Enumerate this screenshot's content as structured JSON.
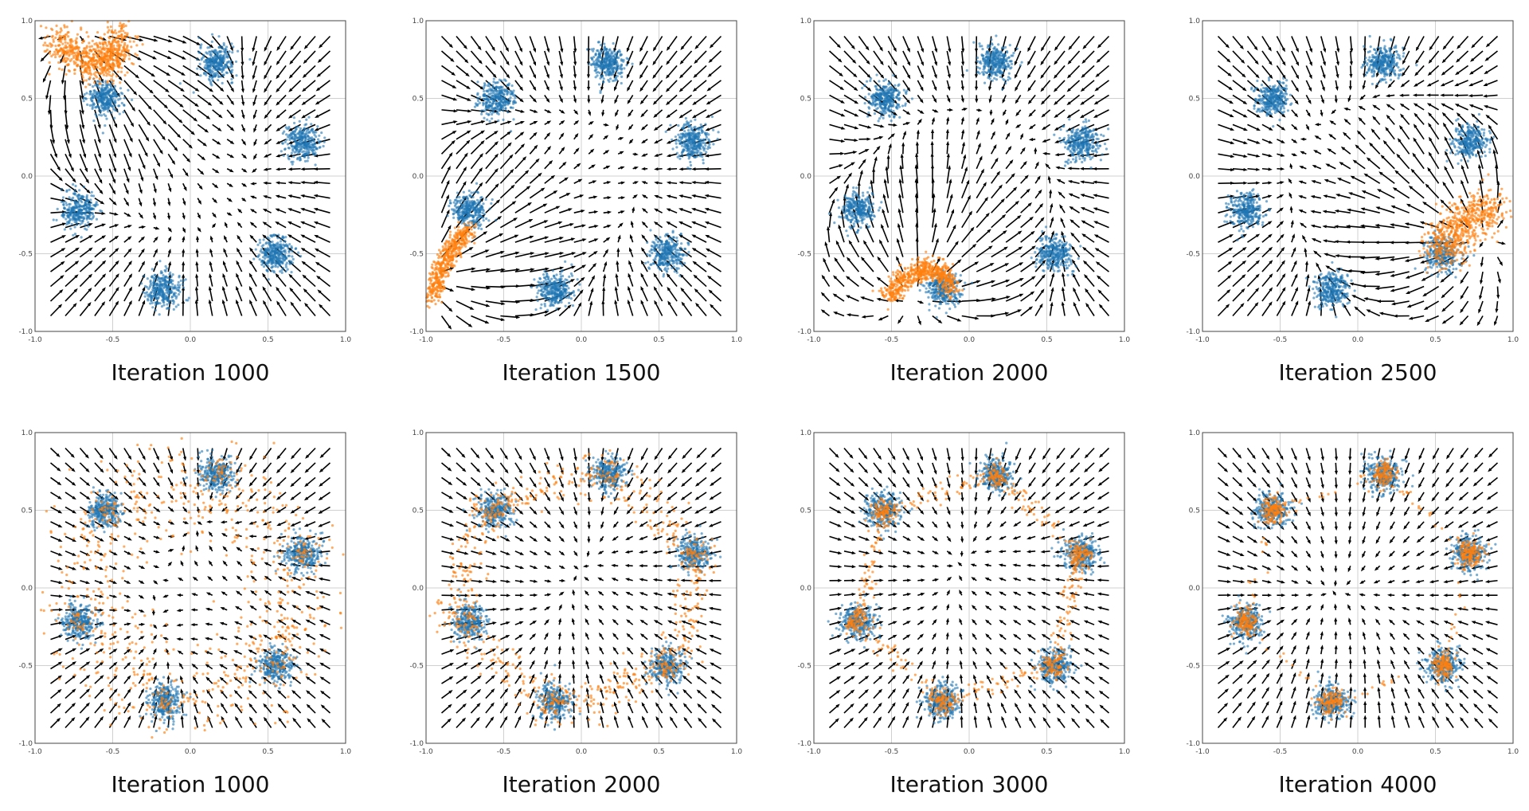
{
  "chart_data": [
    {
      "type": "scatter",
      "title": "Iteration 1000",
      "xlim": [
        -1,
        1
      ],
      "ylim": [
        -1,
        1
      ],
      "ticks": [
        "-1.0",
        "-0.5",
        "0.0",
        "0.5",
        "1.0"
      ],
      "grid": true,
      "gen": {
        "path": [
          [
            -0.88,
            0.9
          ],
          [
            -0.78,
            0.8
          ],
          [
            -0.65,
            0.72
          ],
          [
            -0.55,
            0.72
          ],
          [
            -0.48,
            0.8
          ],
          [
            -0.46,
            0.9
          ]
        ],
        "closed": false,
        "spread": 0.06,
        "n": 700,
        "cluster_frac": 0
      }
    },
    {
      "type": "scatter",
      "title": "Iteration 1500",
      "xlim": [
        -1,
        1
      ],
      "ylim": [
        -1,
        1
      ],
      "ticks": [
        "-1.0",
        "-0.5",
        "0.0",
        "0.5",
        "1.0"
      ],
      "grid": true,
      "gen": {
        "path": [
          [
            -0.97,
            -0.8
          ],
          [
            -0.9,
            -0.6
          ],
          [
            -0.82,
            -0.45
          ],
          [
            -0.72,
            -0.34
          ]
        ],
        "closed": false,
        "spread": 0.03,
        "n": 500,
        "cluster_frac": 0
      }
    },
    {
      "type": "scatter",
      "title": "Iteration 2000",
      "xlim": [
        -1,
        1
      ],
      "ylim": [
        -1,
        1
      ],
      "ticks": [
        "-1.0",
        "-0.5",
        "0.0",
        "0.5",
        "1.0"
      ],
      "grid": true,
      "gen": {
        "path": [
          [
            -0.52,
            -0.78
          ],
          [
            -0.42,
            -0.66
          ],
          [
            -0.3,
            -0.6
          ],
          [
            -0.18,
            -0.62
          ],
          [
            -0.1,
            -0.72
          ]
        ],
        "closed": false,
        "spread": 0.035,
        "n": 600,
        "cluster_frac": 0
      }
    },
    {
      "type": "scatter",
      "title": "Iteration 2500",
      "xlim": [
        -1,
        1
      ],
      "ylim": [
        -1,
        1
      ],
      "ticks": [
        "-1.0",
        "-0.5",
        "0.0",
        "0.5",
        "1.0"
      ],
      "grid": true,
      "gen": {
        "path": [
          [
            0.52,
            -0.52
          ],
          [
            0.6,
            -0.38
          ],
          [
            0.72,
            -0.27
          ],
          [
            0.88,
            -0.18
          ]
        ],
        "closed": false,
        "spread": 0.07,
        "n": 600,
        "cluster_frac": 0
      }
    },
    {
      "type": "scatter",
      "title": "Iteration 1000",
      "xlim": [
        -1,
        1
      ],
      "ylim": [
        -1,
        1
      ],
      "ticks": [
        "-1.0",
        "-0.5",
        "0.0",
        "0.5",
        "1.0"
      ],
      "grid": true,
      "gen": {
        "path": [
          [
            0.17,
            0.73
          ],
          [
            0.72,
            0.22
          ],
          [
            0.55,
            -0.5
          ],
          [
            -0.17,
            -0.73
          ],
          [
            -0.72,
            -0.22
          ],
          [
            -0.55,
            0.5
          ]
        ],
        "closed": true,
        "spread": 0.16,
        "n": 900,
        "cluster_frac": 0.15
      }
    },
    {
      "type": "scatter",
      "title": "Iteration 2000",
      "xlim": [
        -1,
        1
      ],
      "ylim": [
        -1,
        1
      ],
      "ticks": [
        "-1.0",
        "-0.5",
        "0.0",
        "0.5",
        "1.0"
      ],
      "grid": true,
      "gen": {
        "path": [
          [
            0.17,
            0.75
          ],
          [
            0.78,
            0.2
          ],
          [
            0.58,
            -0.52
          ],
          [
            -0.17,
            -0.78
          ],
          [
            -0.85,
            -0.2
          ],
          [
            -0.62,
            0.52
          ]
        ],
        "closed": true,
        "spread": 0.07,
        "n": 900,
        "cluster_frac": 0.25
      }
    },
    {
      "type": "scatter",
      "title": "Iteration 3000",
      "xlim": [
        -1,
        1
      ],
      "ylim": [
        -1,
        1
      ],
      "ticks": [
        "-1.0",
        "-0.5",
        "0.0",
        "0.5",
        "1.0"
      ],
      "grid": true,
      "gen": {
        "path": [
          [
            0.17,
            0.73
          ],
          [
            0.72,
            0.22
          ],
          [
            0.55,
            -0.5
          ],
          [
            -0.17,
            -0.73
          ],
          [
            -0.72,
            -0.22
          ],
          [
            -0.55,
            0.5
          ]
        ],
        "closed": true,
        "spread": 0.03,
        "n": 900,
        "cluster_frac": 0.55
      }
    },
    {
      "type": "scatter",
      "title": "Iteration 4000",
      "xlim": [
        -1,
        1
      ],
      "ylim": [
        -1,
        1
      ],
      "ticks": [
        "-1.0",
        "-0.5",
        "0.0",
        "0.5",
        "1.0"
      ],
      "grid": true,
      "gen": {
        "path": [
          [
            0.17,
            0.73
          ],
          [
            0.72,
            0.22
          ],
          [
            0.55,
            -0.5
          ],
          [
            -0.17,
            -0.73
          ],
          [
            -0.72,
            -0.22
          ],
          [
            -0.55,
            0.5
          ]
        ],
        "closed": true,
        "spread": 0.02,
        "n": 900,
        "cluster_frac": 0.88
      }
    }
  ],
  "real_data": {
    "centers": [
      [
        0.17,
        0.73
      ],
      [
        -0.55,
        0.5
      ],
      [
        0.72,
        0.22
      ],
      [
        -0.72,
        -0.22
      ],
      [
        0.55,
        -0.5
      ],
      [
        -0.17,
        -0.73
      ]
    ],
    "spread": 0.055,
    "n_per_cluster": 300
  },
  "colors": {
    "real": "#1f77b4",
    "generated": "#ff7f0e",
    "arrows": "#000000",
    "grid": "#d0d0d0"
  }
}
